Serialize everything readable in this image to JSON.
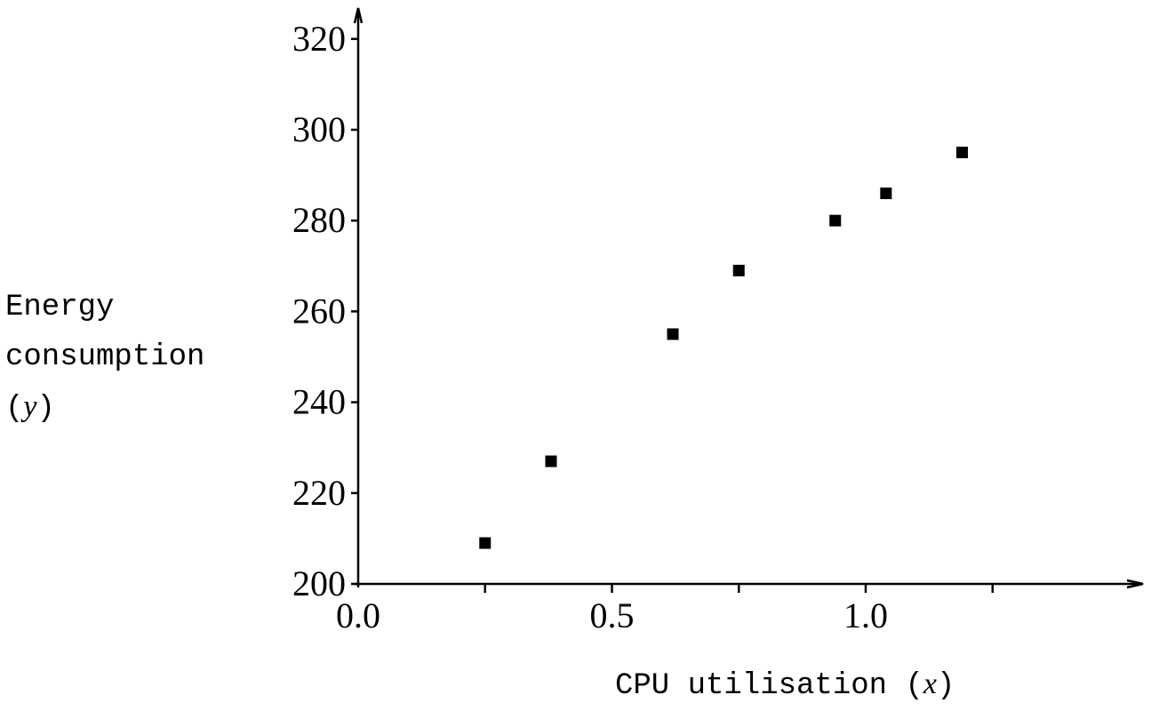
{
  "chart_data": {
    "type": "scatter",
    "xlabel": {
      "text": "CPU utilisation (",
      "variable": "x",
      "close": ")"
    },
    "ylabel": {
      "lines": [
        "Energy",
        "consumption"
      ],
      "prefix": "(",
      "variable": "y",
      "close": ")"
    },
    "xlim": [
      0,
      1.5
    ],
    "ylim": [
      200,
      325
    ],
    "x_ticks": [
      0.0,
      0.25,
      0.5,
      0.75,
      1.0,
      1.25
    ],
    "x_tick_labels": [
      "0.0",
      "",
      "0.5",
      "",
      "1.0",
      ""
    ],
    "y_ticks": [
      200,
      220,
      240,
      260,
      280,
      300,
      320
    ],
    "y_tick_labels": [
      "200",
      "220",
      "240",
      "260",
      "280",
      "300",
      "320"
    ],
    "marker": "square",
    "marker_color": "#000000",
    "grid": false,
    "series": [
      {
        "x": [
          0.25,
          0.38,
          0.62,
          0.75,
          0.94,
          1.04,
          1.19
        ],
        "y": [
          209,
          227,
          255,
          269,
          280,
          286,
          295
        ]
      }
    ]
  }
}
